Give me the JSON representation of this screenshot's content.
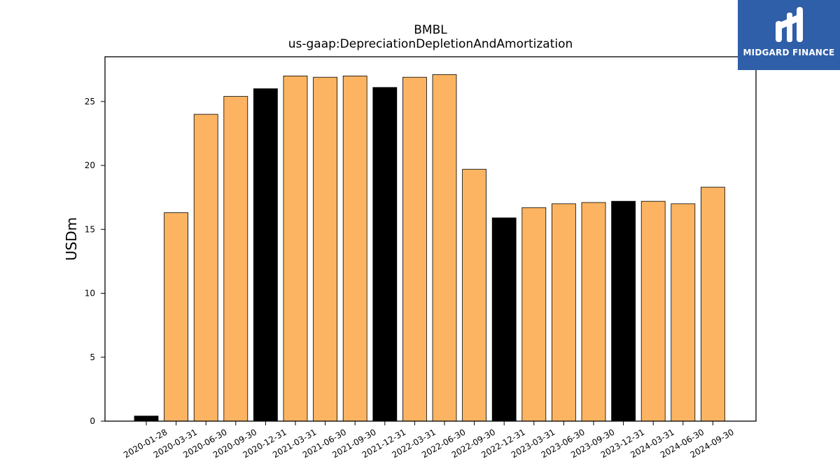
{
  "chart_data": {
    "type": "bar",
    "title_lines": [
      "BMBL",
      "us-gaap:DepreciationDepletionAndAmortization"
    ],
    "ylabel": "USDm",
    "ylim": [
      0,
      28.5
    ],
    "yticks": [
      0,
      5,
      10,
      15,
      20,
      25
    ],
    "categories": [
      "2020-01-28",
      "2020-03-31",
      "2020-06-30",
      "2020-09-30",
      "2020-12-31",
      "2021-03-31",
      "2021-06-30",
      "2021-09-30",
      "2021-12-31",
      "2022-03-31",
      "2022-06-30",
      "2022-09-30",
      "2022-12-31",
      "2023-03-31",
      "2023-06-30",
      "2023-09-30",
      "2023-12-31",
      "2024-03-31",
      "2024-06-30",
      "2024-09-30"
    ],
    "values": [
      0.4,
      16.3,
      24.0,
      25.4,
      26.0,
      27.0,
      26.9,
      27.0,
      26.1,
      26.9,
      27.1,
      19.7,
      15.9,
      16.7,
      17.0,
      17.1,
      17.2,
      17.2,
      17.0,
      18.3
    ],
    "bar_colors": [
      "#000000",
      "#fdb462",
      "#fdb462",
      "#fdb462",
      "#000000",
      "#fdb462",
      "#fdb462",
      "#fdb462",
      "#000000",
      "#fdb462",
      "#fdb462",
      "#fdb462",
      "#000000",
      "#fdb462",
      "#fdb462",
      "#fdb462",
      "#000000",
      "#fdb462",
      "#fdb462",
      "#fdb462"
    ],
    "grid": false,
    "legend": "none"
  },
  "logo": {
    "text": "MIDGARD FINANCE",
    "icon": "midgard-monogram-icon",
    "background": "#2f5fa8"
  }
}
